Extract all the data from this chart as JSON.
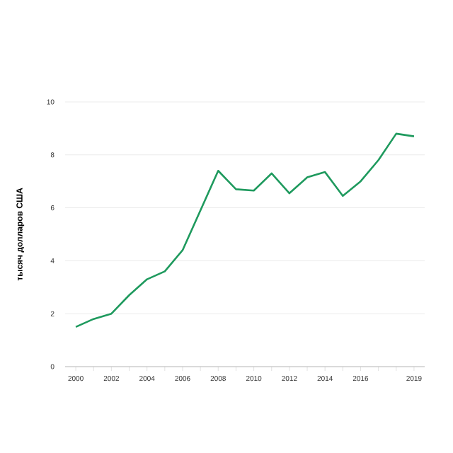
{
  "chart_data": {
    "type": "line",
    "ylabel": "тысяч долларов США",
    "x": [
      2000,
      2001,
      2002,
      2003,
      2004,
      2005,
      2006,
      2007,
      2008,
      2009,
      2010,
      2011,
      2012,
      2013,
      2014,
      2015,
      2016,
      2017,
      2018,
      2019
    ],
    "series": [
      {
        "color": "#1f9a5e",
        "values": [
          1.5,
          1.8,
          2.0,
          2.7,
          3.3,
          3.6,
          4.4,
          5.9,
          7.4,
          6.7,
          6.65,
          7.3,
          6.55,
          7.15,
          7.35,
          6.45,
          7.0,
          7.8,
          8.8,
          8.7
        ]
      }
    ],
    "xlim": [
      1999.4,
      2019.6
    ],
    "ylim": [
      0,
      10
    ],
    "xticks": [
      2000,
      {
        "value": 2001,
        "label": null
      },
      2002,
      {
        "value": 2003,
        "label": null
      },
      2004,
      {
        "value": 2005,
        "label": null
      },
      2006,
      {
        "value": 2007,
        "label": null
      },
      2008,
      {
        "value": 2009,
        "label": null
      },
      2010,
      {
        "value": 2011,
        "label": null
      },
      2012,
      {
        "value": 2013,
        "label": null
      },
      2014,
      {
        "value": 2015,
        "label": null
      },
      2016,
      {
        "value": 2017,
        "label": null
      },
      {
        "value": 2018,
        "label": null
      },
      2019
    ],
    "yticks": [
      0,
      2,
      4,
      6,
      8,
      10
    ],
    "grid": "y",
    "marker": "none",
    "line_style": "solid"
  }
}
